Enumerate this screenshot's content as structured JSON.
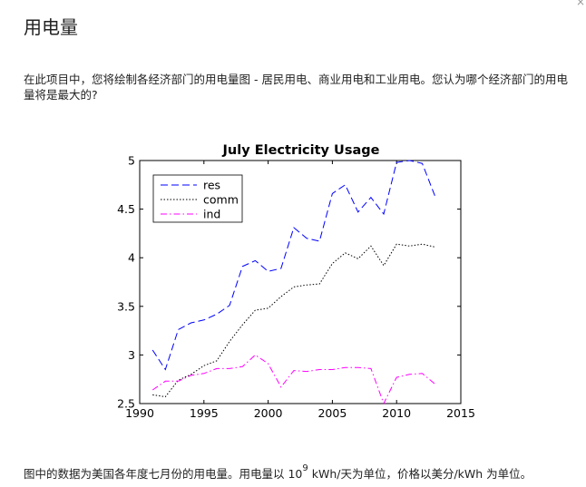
{
  "page": {
    "title": "用电量",
    "intro": "在此项目中，您将绘制各经济部门的用电量图 - 居民用电、商业用电和工业用电。您认为哪个经济部门的用电量将是最大的?",
    "footer_pre": "图中的数据为美国各年度七月份的用电量。用电量以 10",
    "footer_sup": "9",
    "footer_post": " kWh/天为单位，价格以美分/kWh 为单位。",
    "close_glyph": "×"
  },
  "chart_data": {
    "type": "line",
    "title": "July Electricity Usage",
    "xlabel": "",
    "ylabel": "",
    "xlim": [
      1990,
      2015
    ],
    "ylim": [
      2.5,
      5
    ],
    "xticks": [
      1990,
      1995,
      2000,
      2005,
      2010,
      2015
    ],
    "yticks": [
      2.5,
      3,
      3.5,
      4,
      4.5,
      5
    ],
    "xtick_labels": [
      "1990",
      "1995",
      "2000",
      "2005",
      "2010",
      "2015"
    ],
    "ytick_labels": [
      "2.5",
      "3",
      "3.5",
      "4",
      "4.5",
      "5"
    ],
    "grid": false,
    "legend_position": "top-left",
    "x": [
      1991,
      1992,
      1993,
      1994,
      1995,
      1996,
      1997,
      1998,
      1999,
      2000,
      2001,
      2002,
      2003,
      2004,
      2005,
      2006,
      2007,
      2008,
      2009,
      2010,
      2011,
      2012,
      2013
    ],
    "series": [
      {
        "name": "res",
        "color": "#0000ff",
        "dash": "8,4",
        "values": [
          3.05,
          2.85,
          3.26,
          3.33,
          3.36,
          3.42,
          3.51,
          3.91,
          3.97,
          3.86,
          3.89,
          4.31,
          4.2,
          4.17,
          4.66,
          4.75,
          4.47,
          4.62,
          4.45,
          4.98,
          5.0,
          4.97,
          4.63
        ]
      },
      {
        "name": "comm",
        "color": "#000000",
        "dash": "1.5,2",
        "values": [
          2.59,
          2.57,
          2.74,
          2.8,
          2.89,
          2.94,
          3.14,
          3.31,
          3.46,
          3.48,
          3.6,
          3.7,
          3.72,
          3.73,
          3.94,
          4.05,
          3.99,
          4.12,
          3.92,
          4.14,
          4.12,
          4.14,
          4.11
        ]
      },
      {
        "name": "ind",
        "color": "#ff00ff",
        "dash": "7,3,1.5,3",
        "values": [
          2.64,
          2.73,
          2.73,
          2.79,
          2.81,
          2.86,
          2.86,
          2.88,
          3.0,
          2.91,
          2.67,
          2.84,
          2.83,
          2.85,
          2.85,
          2.87,
          2.87,
          2.86,
          2.5,
          2.77,
          2.8,
          2.81,
          2.7
        ]
      }
    ]
  }
}
